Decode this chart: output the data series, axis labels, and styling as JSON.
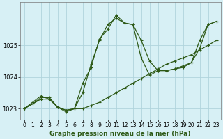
{
  "title": "Graphe pression niveau de la mer (hPa)",
  "bg_color": "#d7f0f5",
  "grid_color": "#b0d4dc",
  "line_color": "#2d5916",
  "xlim": [
    -0.5,
    23.5
  ],
  "ylim": [
    1022.65,
    1026.35
  ],
  "yticks": [
    1023,
    1024,
    1025
  ],
  "xticks": [
    0,
    1,
    2,
    3,
    4,
    5,
    6,
    7,
    8,
    9,
    10,
    11,
    12,
    13,
    14,
    15,
    16,
    17,
    18,
    19,
    20,
    21,
    22,
    23
  ],
  "line1_x": [
    0,
    1,
    2,
    3,
    4,
    5,
    6,
    7,
    8,
    9,
    10,
    11,
    12,
    13,
    14,
    15,
    16,
    17,
    18,
    19,
    20,
    21,
    22,
    23
  ],
  "line1_y": [
    1023.0,
    1023.15,
    1023.3,
    1023.3,
    1023.05,
    1022.95,
    1023.0,
    1023.0,
    1023.1,
    1023.2,
    1023.35,
    1023.5,
    1023.65,
    1023.8,
    1023.95,
    1024.1,
    1024.25,
    1024.4,
    1024.5,
    1024.6,
    1024.7,
    1024.85,
    1025.0,
    1025.15
  ],
  "line2_x": [
    0,
    1,
    2,
    3,
    4,
    5,
    6,
    7,
    8,
    9,
    10,
    11,
    12,
    13,
    14,
    15,
    16,
    17,
    18,
    19,
    20,
    21,
    22,
    23
  ],
  "line2_y": [
    1023.0,
    1023.2,
    1023.4,
    1023.3,
    1023.05,
    1022.9,
    1023.0,
    1023.5,
    1024.4,
    1025.15,
    1025.65,
    1025.85,
    1025.7,
    1025.65,
    1025.15,
    1024.5,
    1024.2,
    1024.2,
    1024.25,
    1024.3,
    1024.45,
    1024.9,
    1025.65,
    1025.75
  ],
  "line3_x": [
    0,
    1,
    2,
    3,
    4,
    5,
    6,
    7,
    8,
    9,
    10,
    11,
    12,
    13,
    14,
    15,
    16,
    17,
    18,
    19,
    20,
    21,
    22,
    23
  ],
  "line3_y": [
    1023.0,
    1023.15,
    1023.35,
    1023.35,
    1023.05,
    1022.95,
    1023.0,
    1023.8,
    1024.3,
    1025.2,
    1025.5,
    1025.95,
    1025.7,
    1025.65,
    1024.6,
    1024.05,
    1024.2,
    1024.2,
    1024.25,
    1024.35,
    1024.45,
    1025.15,
    1025.65,
    1025.75
  ],
  "title_fontsize": 6.5,
  "tick_fontsize": 5.5,
  "linewidth": 0.9,
  "markersize": 3.0
}
